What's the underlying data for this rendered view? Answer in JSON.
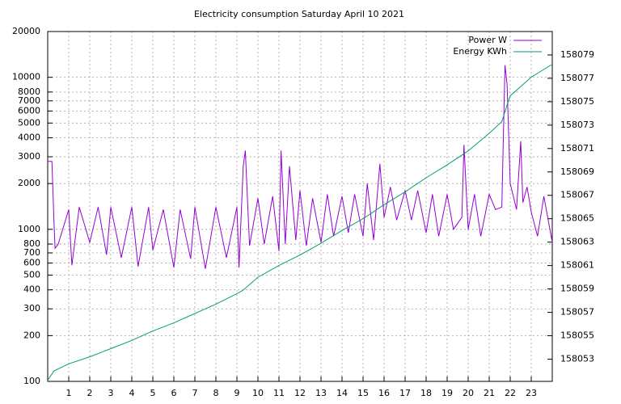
{
  "chart_data": {
    "type": "line",
    "title": "Electricity consumption Saturday April 10 2021",
    "xlim": [
      0,
      24
    ],
    "xticks": [
      1,
      2,
      3,
      4,
      5,
      6,
      7,
      8,
      9,
      10,
      11,
      12,
      13,
      14,
      15,
      16,
      17,
      18,
      19,
      20,
      21,
      22,
      23
    ],
    "ylim": [
      100,
      20000
    ],
    "yticks": [
      100,
      200,
      300,
      400,
      500,
      600,
      700,
      800,
      1000,
      2000,
      3000,
      4000,
      5000,
      6000,
      7000,
      8000,
      10000,
      20000
    ],
    "logy": true,
    "y2lim": [
      158051.1,
      158081
    ],
    "y2ticks": [
      158053,
      158055,
      158057,
      158059,
      158061,
      158063,
      158065,
      158067,
      158069,
      158071,
      158073,
      158075,
      158077,
      158079
    ],
    "grid": true,
    "legend": "top-right",
    "series": [
      {
        "name": "Power W",
        "color": "#9400d3",
        "x": [
          0,
          0.2,
          0.3,
          0.35,
          0.5,
          1,
          1.15,
          1.5,
          2,
          2.4,
          2.8,
          3,
          3.5,
          4,
          4.3,
          4.8,
          5,
          5.5,
          6,
          6.3,
          6.8,
          7,
          7.5,
          8,
          8.5,
          9,
          9.1,
          9.3,
          9.4,
          9.6,
          10,
          10.3,
          10.7,
          11,
          11.1,
          11.3,
          11.5,
          11.8,
          12,
          12.3,
          12.6,
          13,
          13.3,
          13.6,
          14,
          14.3,
          14.6,
          15,
          15.2,
          15.5,
          15.8,
          16,
          16.3,
          16.6,
          17,
          17.3,
          17.6,
          18,
          18.3,
          18.6,
          19,
          19.3,
          19.7,
          19.8,
          20,
          20.3,
          20.6,
          21,
          21.3,
          21.6,
          21.75,
          21.85,
          22,
          22.3,
          22.5,
          22.6,
          22.8,
          23,
          23.3,
          23.6,
          24
        ],
        "values": [
          2800,
          2800,
          1100,
          750,
          800,
          1350,
          580,
          1400,
          820,
          1400,
          680,
          1400,
          650,
          1400,
          570,
          1400,
          730,
          1350,
          560,
          1350,
          640,
          1400,
          550,
          1400,
          650,
          1400,
          560,
          2600,
          3300,
          780,
          1600,
          800,
          1650,
          720,
          3300,
          800,
          2600,
          850,
          1800,
          780,
          1600,
          820,
          1700,
          900,
          1650,
          950,
          1700,
          900,
          2000,
          850,
          2700,
          1200,
          1900,
          1150,
          1800,
          1150,
          1800,
          950,
          1700,
          900,
          1700,
          1000,
          1200,
          3600,
          1000,
          1700,
          900,
          1700,
          1350,
          1400,
          12000,
          9000,
          2000,
          1350,
          3800,
          1500,
          1900,
          1300,
          900,
          1650,
          820
        ]
      },
      {
        "name": "Energy KWh",
        "color": "#009e73",
        "axis": "y2",
        "x": [
          0,
          0.3,
          1,
          2,
          3,
          4,
          5,
          6,
          7,
          8,
          9,
          9.3,
          10,
          11,
          12,
          13,
          14,
          15,
          16,
          17,
          18,
          19,
          20,
          21,
          21.6,
          21.9,
          22,
          23,
          24
        ],
        "values": [
          158051.2,
          158052.0,
          158052.6,
          158053.2,
          158053.9,
          158054.6,
          158055.4,
          158056.1,
          158056.9,
          158057.7,
          158058.6,
          158058.9,
          158060.0,
          158061.0,
          158061.9,
          158062.9,
          158064.0,
          158065.0,
          158066.2,
          158067.3,
          158068.5,
          158069.6,
          158070.8,
          158072.3,
          158073.3,
          158075.0,
          158075.5,
          158077.1,
          158078.2
        ]
      }
    ]
  }
}
